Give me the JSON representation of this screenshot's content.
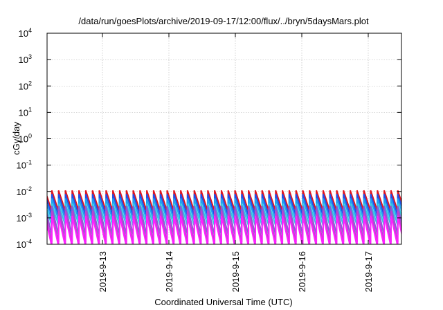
{
  "chart_data": {
    "type": "line",
    "title": "/data/run/goesPlots/archive/2019-09-17/12:00/flux/../bryn/5daysMars.plot",
    "xlabel": "Coordinated Universal Time (UTC)",
    "ylabel": "cGy/day",
    "y_scale": "log",
    "ylim": [
      0.0001,
      10000
    ],
    "xlim": [
      "2019-09-12T04:00",
      "2019-09-17T12:00"
    ],
    "grid": true,
    "legend": "none",
    "x_ticks": [
      "2019-9-13",
      "2019-9-14",
      "2019-9-15",
      "2019-9-16",
      "2019-9-17"
    ],
    "y_ticks": [
      {
        "base": "10",
        "exp": "-4"
      },
      {
        "base": "10",
        "exp": "-3"
      },
      {
        "base": "10",
        "exp": "-2"
      },
      {
        "base": "10",
        "exp": "-1"
      },
      {
        "base": "10",
        "exp": "0"
      },
      {
        "base": "10",
        "exp": "1"
      },
      {
        "base": "10",
        "exp": "2"
      },
      {
        "base": "10",
        "exp": "3"
      },
      {
        "base": "10",
        "exp": "4"
      }
    ],
    "cycle_hours": 2.45,
    "series": [
      {
        "color": "#e0141e",
        "peak": 0.011,
        "trough": 0.0018
      },
      {
        "color": "#2050e8",
        "peak": 0.008,
        "trough": 0.0012
      },
      {
        "color": "#20a0f0",
        "peak": 0.0055,
        "trough": 0.0008
      },
      {
        "color": "#30c8e0",
        "peak": 0.0035,
        "trough": 0.0005
      },
      {
        "color": "#8a5ad8",
        "peak": 0.0028,
        "trough": 0.00022
      },
      {
        "color": "#c040d0",
        "peak": 0.0018,
        "trough": 0.00012
      },
      {
        "color": "#ff20ff",
        "peak": 0.0012,
        "trough": 8e-05
      }
    ]
  }
}
